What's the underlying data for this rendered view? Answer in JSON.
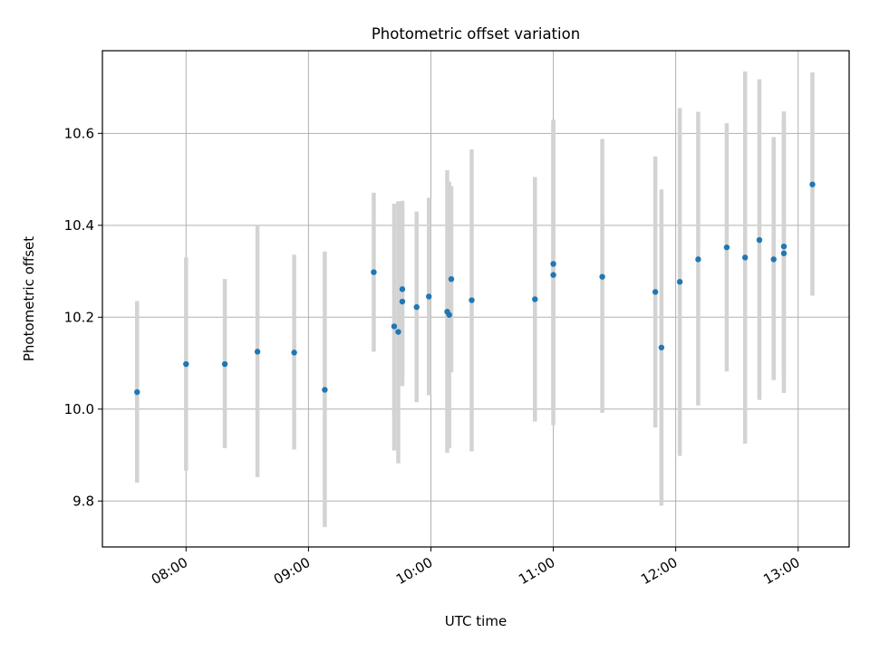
{
  "chart_data": {
    "type": "scatter",
    "title": "Photometric offset variation",
    "xlabel": "UTC time",
    "ylabel": "Photometric offset",
    "xlim": [
      "07:19",
      "13:25"
    ],
    "ylim": [
      9.7,
      10.78
    ],
    "x_ticks": [
      "08:00",
      "09:00",
      "10:00",
      "11:00",
      "12:00",
      "13:00"
    ],
    "y_ticks": [
      "9.8",
      "10.0",
      "10.2",
      "10.4",
      "10.6"
    ],
    "grid": true,
    "series": [
      {
        "marker_color": "#1f77b4",
        "errorbar_color": "#d3d3d3",
        "points": [
          {
            "t": "07:36",
            "y": 10.037,
            "ylo": 9.84,
            "yhi": 10.235
          },
          {
            "t": "08:00",
            "y": 10.098,
            "ylo": 9.866,
            "yhi": 10.33
          },
          {
            "t": "08:19",
            "y": 10.098,
            "ylo": 9.915,
            "yhi": 10.283
          },
          {
            "t": "08:35",
            "y": 10.125,
            "ylo": 9.852,
            "yhi": 10.4
          },
          {
            "t": "08:53",
            "y": 10.123,
            "ylo": 9.912,
            "yhi": 10.336
          },
          {
            "t": "09:08",
            "y": 10.042,
            "ylo": 9.743,
            "yhi": 10.343
          },
          {
            "t": "09:32",
            "y": 10.298,
            "ylo": 10.125,
            "yhi": 10.471
          },
          {
            "t": "09:42",
            "y": 10.18,
            "ylo": 9.91,
            "yhi": 10.447
          },
          {
            "t": "09:44",
            "y": 10.168,
            "ylo": 9.882,
            "yhi": 10.452
          },
          {
            "t": "09:46",
            "y": 10.234,
            "ylo": 10.05,
            "yhi": 10.453
          },
          {
            "t": "09:46",
            "y": 10.261,
            "ylo": 10.07,
            "yhi": 10.453
          },
          {
            "t": "09:53",
            "y": 10.222,
            "ylo": 10.015,
            "yhi": 10.43
          },
          {
            "t": "09:59",
            "y": 10.245,
            "ylo": 10.03,
            "yhi": 10.46
          },
          {
            "t": "10:08",
            "y": 10.212,
            "ylo": 9.905,
            "yhi": 10.52
          },
          {
            "t": "10:09",
            "y": 10.205,
            "ylo": 9.915,
            "yhi": 10.495
          },
          {
            "t": "10:10",
            "y": 10.283,
            "ylo": 10.08,
            "yhi": 10.485
          },
          {
            "t": "10:20",
            "y": 10.237,
            "ylo": 9.908,
            "yhi": 10.565
          },
          {
            "t": "10:51",
            "y": 10.239,
            "ylo": 9.973,
            "yhi": 10.505
          },
          {
            "t": "11:00",
            "y": 10.292,
            "ylo": 9.965,
            "yhi": 10.625
          },
          {
            "t": "11:00",
            "y": 10.316,
            "ylo": 10.0,
            "yhi": 10.63
          },
          {
            "t": "11:24",
            "y": 10.288,
            "ylo": 9.992,
            "yhi": 10.588
          },
          {
            "t": "11:50",
            "y": 10.255,
            "ylo": 9.96,
            "yhi": 10.55
          },
          {
            "t": "11:53",
            "y": 10.134,
            "ylo": 9.79,
            "yhi": 10.478
          },
          {
            "t": "12:02",
            "y": 10.277,
            "ylo": 9.898,
            "yhi": 10.655
          },
          {
            "t": "12:11",
            "y": 10.326,
            "ylo": 10.008,
            "yhi": 10.647
          },
          {
            "t": "12:25",
            "y": 10.352,
            "ylo": 10.082,
            "yhi": 10.622
          },
          {
            "t": "12:34",
            "y": 10.33,
            "ylo": 9.925,
            "yhi": 10.735
          },
          {
            "t": "12:41",
            "y": 10.368,
            "ylo": 10.02,
            "yhi": 10.718
          },
          {
            "t": "12:48",
            "y": 10.326,
            "ylo": 10.063,
            "yhi": 10.592
          },
          {
            "t": "12:53",
            "y": 10.339,
            "ylo": 10.035,
            "yhi": 10.648
          },
          {
            "t": "12:53",
            "y": 10.354,
            "ylo": 10.075,
            "yhi": 10.633
          },
          {
            "t": "13:07",
            "y": 10.489,
            "ylo": 10.247,
            "yhi": 10.733
          }
        ]
      }
    ]
  }
}
